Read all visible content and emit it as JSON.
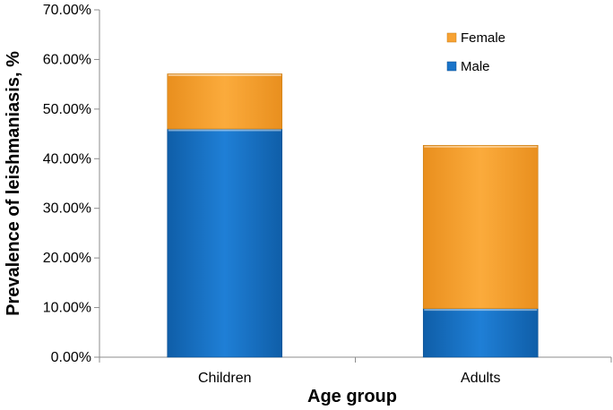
{
  "chart_data": {
    "type": "bar",
    "stacked": true,
    "categories": [
      "Children",
      "Adults"
    ],
    "series": [
      {
        "name": "Male",
        "color": "#1a74c9",
        "values": [
          46.0,
          9.8
        ]
      },
      {
        "name": "Female",
        "color": "#f7a233",
        "values": [
          11.1,
          32.9
        ]
      }
    ],
    "title": "",
    "xlabel": "Age group",
    "ylabel": "Prevalence of leishmaniasis, %",
    "ylim": [
      0,
      70
    ],
    "yticks": [
      0,
      10,
      20,
      30,
      40,
      50,
      60,
      70
    ],
    "ytick_labels": [
      "0.00%",
      "10.00%",
      "20.00%",
      "30.00%",
      "40.00%",
      "50.00%",
      "60.00%",
      "70.00%"
    ],
    "legend": {
      "placement": "top-right",
      "entries": [
        "Female",
        "Male"
      ]
    },
    "grid": false
  }
}
